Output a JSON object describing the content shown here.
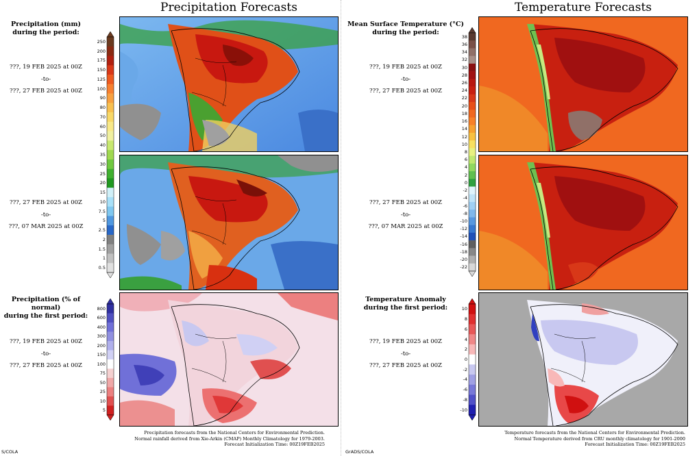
{
  "titles": {
    "precip": "Precipitation Forecasts",
    "temp": "Temperature Forecasts"
  },
  "panels": {
    "precip_mm": {
      "label_line1": "Precipitation (mm)",
      "label_line2": "during the period:",
      "p1_start": "???, 19 FEB 2025 at 00Z",
      "p1_sep": "-to-",
      "p1_end": "???, 27 FEB 2025 at 00Z",
      "p2_start": "???, 27 FEB 2025 at 00Z",
      "p2_sep": "-to-",
      "p2_end": "???, 07 MAR 2025 at 00Z"
    },
    "precip_pct": {
      "label_line1": "Precipitation (% of normal)",
      "label_line2": "during the first period:",
      "start": "???, 19 FEB 2025 at 00Z",
      "sep": "-to-",
      "end": "???, 27 FEB 2025 at 00Z"
    },
    "temp_mean": {
      "label_line1": "Mean Surface Temperature (°C)",
      "label_line2": "during the period:",
      "p1_start": "???, 19 FEB 2025 at 00Z",
      "p1_sep": "-to-",
      "p1_end": "???, 27 FEB 2025 at 00Z",
      "p2_start": "???, 27 FEB 2025 at 00Z",
      "p2_sep": "-to-",
      "p2_end": "???, 07 MAR 2025 at 00Z"
    },
    "temp_anom": {
      "label_line1": "Temperature Anomaly",
      "label_line2": "during the first period:",
      "start": "???, 19 FEB 2025 at 00Z",
      "sep": "-to-",
      "end": "???, 27 FEB 2025 at 00Z"
    }
  },
  "colorbars": {
    "precip_mm": {
      "labels": [
        "250",
        "200",
        "175",
        "150",
        "125",
        "100",
        "90",
        "80",
        "70",
        "60",
        "50",
        "40",
        "35",
        "30",
        "25",
        "20",
        "15",
        "10",
        "7.5",
        "5",
        "2.5",
        "2",
        "1.5",
        "1",
        "0.5"
      ],
      "colors": [
        "#6b3a1f",
        "#8a2a12",
        "#b02010",
        "#d83818",
        "#ee5a20",
        "#f88030",
        "#f8a040",
        "#f8c050",
        "#f8d868",
        "#f8e888",
        "#f0f0a0",
        "#c8e870",
        "#a0d850",
        "#70c840",
        "#40b030",
        "#209820",
        "#d0f0f8",
        "#a8e0f8",
        "#80c8f0",
        "#5098e0",
        "#2868c8",
        "#808080",
        "#a0a0a0",
        "#c0c0c0",
        "#e0e0e0"
      ]
    },
    "precip_pct": {
      "labels": [
        "800",
        "600",
        "400",
        "300",
        "200",
        "150",
        "100",
        "75",
        "50",
        "25",
        "10",
        "5"
      ],
      "colors": [
        "#3030a0",
        "#5050c0",
        "#7070d8",
        "#9090e0",
        "#b0b0ec",
        "#d0d0f4",
        "#ffffff",
        "#f4d0d0",
        "#f0a8a8",
        "#ec8080",
        "#e05050",
        "#d02020"
      ]
    },
    "temp_mean": {
      "labels": [
        "38",
        "36",
        "34",
        "32",
        "30",
        "28",
        "26",
        "24",
        "22",
        "20",
        "18",
        "16",
        "14",
        "12",
        "10",
        "8",
        "6",
        "4",
        "2",
        "0",
        "-2",
        "-4",
        "-6",
        "-8",
        "-10",
        "-12",
        "-14",
        "-16",
        "-18",
        "-20",
        "-22"
      ],
      "colors": [
        "#5a3a30",
        "#7a5048",
        "#907068",
        "#a89088",
        "#8a1010",
        "#a01010",
        "#b81810",
        "#c82010",
        "#d83818",
        "#e85018",
        "#f06820",
        "#f88028",
        "#f8a030",
        "#f8c040",
        "#f8e060",
        "#e8f080",
        "#c0e870",
        "#90d860",
        "#60c050",
        "#30a040",
        "#e0f4fc",
        "#c0e4f8",
        "#a0d0f4",
        "#80b8ec",
        "#5898e0",
        "#3878d0",
        "#2050b8",
        "#606060",
        "#888888",
        "#b0b0b0",
        "#d8d8d8"
      ]
    },
    "temp_anom": {
      "labels": [
        "10",
        "8",
        "6",
        "4",
        "2",
        "0",
        "-2",
        "-4",
        "-6",
        "-8",
        "-10"
      ],
      "colors": [
        "#d01010",
        "#e03030",
        "#e85858",
        "#f08888",
        "#f8b8b8",
        "#ffffff",
        "#c8c8f0",
        "#a0a0e4",
        "#7878d8",
        "#5050c8",
        "#2020b0"
      ]
    }
  },
  "footers": {
    "precip_line1": "Precipitation forecasts from the National Centers for Environmental Prediction.",
    "precip_line2": "Normal rainfall derived from Xie-Arkin (CMAP) Monthly Climatology for 1979-2003.",
    "precip_line3": "Forecast Initialization Time: 00Z19FEB2025",
    "temp_line1": "Temperature forecasts from the National Centers for Environmental Prediction.",
    "temp_line2": "Normal Temperature derived from CRU monthly climatology for 1901-2000",
    "temp_line3": "Forecast Initialization Time: 00Z19FEB2025"
  },
  "credits": {
    "left": "S/COLA",
    "right": "GrADS/COLA"
  }
}
